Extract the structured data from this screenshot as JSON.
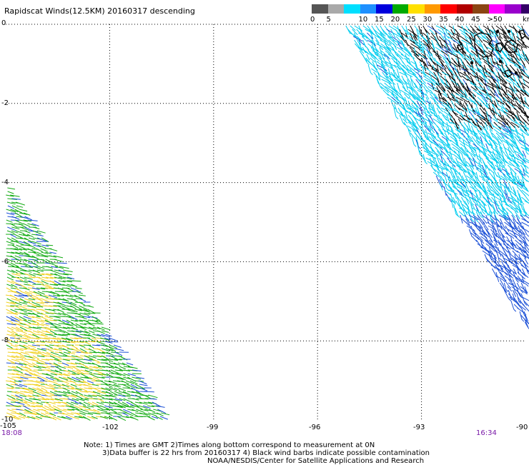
{
  "title": "Rapidscat Winds(12.5KM) 20160317 descending",
  "legend": {
    "unit_label": "knots",
    "bins": [
      {
        "label": "0",
        "color": "#555555"
      },
      {
        "label": "5",
        "color": "#a9a9a9"
      },
      {
        "label": "",
        "color": "#00dfff"
      },
      {
        "label": "10",
        "color": "#1e90ff"
      },
      {
        "label": "15",
        "color": "#0000dd"
      },
      {
        "label": "20",
        "color": "#00aa00"
      },
      {
        "label": "25",
        "color": "#ffe000"
      },
      {
        "label": "30",
        "color": "#ff9900"
      },
      {
        "label": "35",
        "color": "#ff0000"
      },
      {
        "label": "40",
        "color": "#b00000"
      },
      {
        "label": "45",
        "color": "#8b4513"
      },
      {
        "label": ">50",
        "color": "#ff00ff"
      },
      {
        "label": "",
        "color": "#9900cc"
      },
      {
        "label": "",
        "color": "#330066"
      }
    ]
  },
  "axes": {
    "lat_labels": [
      "0",
      "-2",
      "-4",
      "-6",
      "-8",
      "-10"
    ],
    "lon_labels": [
      "-105",
      "-102",
      "-99",
      "-96",
      "-93",
      "-90"
    ],
    "lat_range": [
      -10,
      0
    ],
    "lon_range": [
      -105,
      -90
    ]
  },
  "times": {
    "left": "18:08",
    "right": "16:34"
  },
  "notes": [
    "Note: 1) Times are GMT 2)Times along bottom correspond to measurement at 0N",
    "3)Data buffer is 22 hrs from 20160317 4) Black wind barbs indicate possible contamination",
    "NOAA/NESDIS/Center for Satellite Applications and Research"
  ],
  "colors": {
    "contaminated": "#000000",
    "cyan": "#00ccee",
    "blue": "#1a4fd6",
    "green": "#11aa11",
    "yellow": "#f0d020",
    "coast": "#000000",
    "timestamp": "#7a1aa8"
  },
  "swaths": {
    "east": {
      "description_colors": [
        "cyan",
        "blue",
        "contaminated"
      ]
    },
    "west": {
      "description_colors": [
        "green",
        "yellow",
        "blue"
      ]
    }
  }
}
